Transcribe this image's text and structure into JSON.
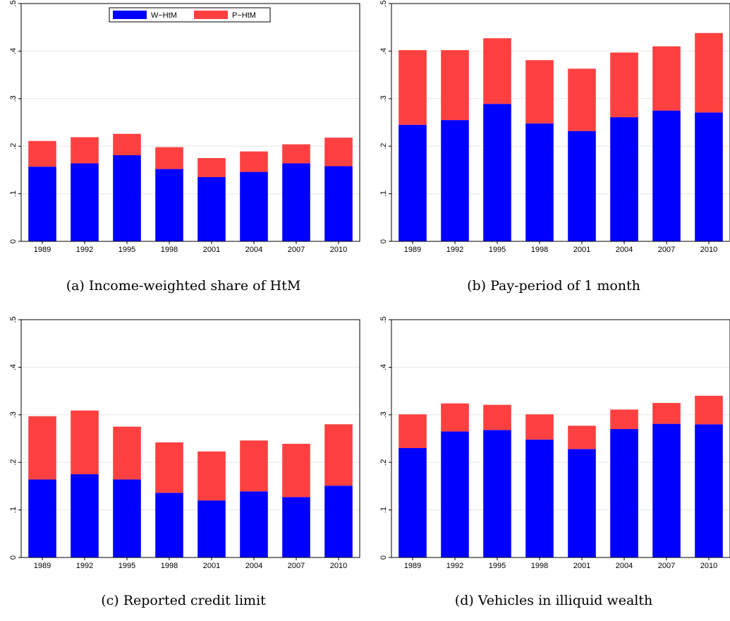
{
  "colors": {
    "wHtM": "#0000ff",
    "pHtM": "#ff4040",
    "grid": "#e6e6e6"
  },
  "legend": {
    "items": [
      "W−HtM",
      "P−HtM"
    ]
  },
  "captions": [
    "(a) Income-weighted share of HtM",
    "(b) Pay-period of 1 month",
    "(c) Reported credit limit",
    "(d) Vehicles in illiquid wealth"
  ],
  "chart_data": [
    {
      "type": "bar",
      "stacked": true,
      "categories": [
        "1989",
        "1992",
        "1995",
        "1998",
        "2001",
        "2004",
        "2007",
        "2010"
      ],
      "series": [
        {
          "name": "W−HtM",
          "values": [
            0.157,
            0.164,
            0.181,
            0.152,
            0.135,
            0.146,
            0.164,
            0.158
          ]
        },
        {
          "name": "P−HtM",
          "values": [
            0.054,
            0.055,
            0.045,
            0.046,
            0.04,
            0.043,
            0.04,
            0.06
          ]
        }
      ],
      "ylim": [
        0,
        0.5
      ],
      "yticks": [
        "0",
        ".1",
        ".2",
        ".3",
        ".4",
        ".5"
      ],
      "grid": true,
      "legend_position": "top"
    },
    {
      "type": "bar",
      "stacked": true,
      "categories": [
        "1989",
        "1992",
        "1995",
        "1998",
        "2001",
        "2004",
        "2007",
        "2010"
      ],
      "series": [
        {
          "name": "W−HtM",
          "values": [
            0.245,
            0.255,
            0.289,
            0.248,
            0.232,
            0.261,
            0.275,
            0.271
          ]
        },
        {
          "name": "P−HtM",
          "values": [
            0.157,
            0.147,
            0.138,
            0.133,
            0.131,
            0.136,
            0.135,
            0.167
          ]
        }
      ],
      "ylim": [
        0,
        0.5
      ],
      "yticks": [
        "0",
        ".1",
        ".2",
        ".3",
        ".4",
        ".5"
      ],
      "grid": true
    },
    {
      "type": "bar",
      "stacked": true,
      "categories": [
        "1989",
        "1992",
        "1995",
        "1998",
        "2001",
        "2004",
        "2007",
        "2010"
      ],
      "series": [
        {
          "name": "W−HtM",
          "values": [
            0.164,
            0.175,
            0.164,
            0.136,
            0.12,
            0.139,
            0.127,
            0.151
          ]
        },
        {
          "name": "P−HtM",
          "values": [
            0.133,
            0.134,
            0.111,
            0.106,
            0.103,
            0.107,
            0.112,
            0.129
          ]
        }
      ],
      "ylim": [
        0,
        0.5
      ],
      "yticks": [
        "0",
        ".1",
        ".2",
        ".3",
        ".4",
        ".5"
      ],
      "grid": true
    },
    {
      "type": "bar",
      "stacked": true,
      "categories": [
        "1989",
        "1992",
        "1995",
        "1998",
        "2001",
        "2004",
        "2007",
        "2010"
      ],
      "series": [
        {
          "name": "W−HtM",
          "values": [
            0.23,
            0.265,
            0.268,
            0.248,
            0.228,
            0.27,
            0.281,
            0.28
          ]
        },
        {
          "name": "P−HtM",
          "values": [
            0.071,
            0.059,
            0.053,
            0.053,
            0.049,
            0.041,
            0.044,
            0.06
          ]
        }
      ],
      "ylim": [
        0,
        0.5
      ],
      "yticks": [
        "0",
        ".1",
        ".2",
        ".3",
        ".4",
        ".5"
      ],
      "grid": true
    }
  ]
}
